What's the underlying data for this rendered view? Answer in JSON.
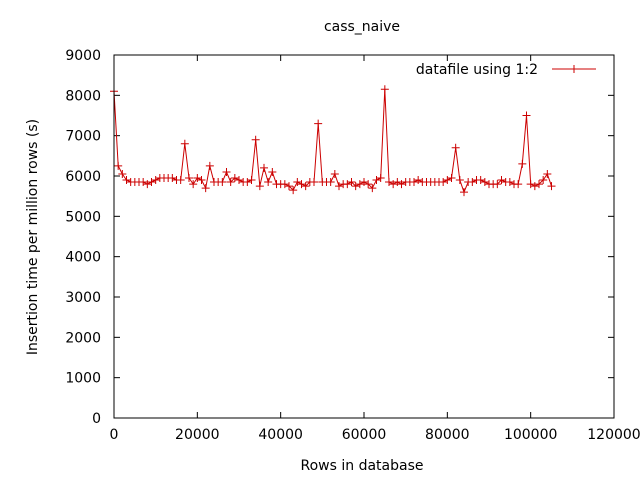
{
  "chart_data": {
    "type": "line",
    "title": "cass_naive",
    "xlabel": "Rows in database",
    "ylabel": "Insertion time per million rows (s)",
    "xlim": [
      0,
      120000
    ],
    "ylim": [
      0,
      9000
    ],
    "x_ticks": [
      0,
      20000,
      40000,
      60000,
      80000,
      100000,
      120000
    ],
    "y_ticks": [
      0,
      1000,
      2000,
      3000,
      4000,
      5000,
      6000,
      7000,
      8000,
      9000
    ],
    "x_tick_labels": [
      "0",
      "20000",
      "40000",
      "60000",
      "80000",
      "100000",
      "120000"
    ],
    "y_tick_labels": [
      "0",
      "1000",
      "2000",
      "3000",
      "4000",
      "5000",
      "6000",
      "7000",
      "8000",
      "9000"
    ],
    "grid": false,
    "legend_position": "top-right",
    "series_color": "#cc0000",
    "series": [
      {
        "name": "datafile using 1:2",
        "x": [
          0,
          1000,
          2000,
          3000,
          4000,
          5000,
          6000,
          7000,
          8000,
          9000,
          10000,
          11000,
          12000,
          13000,
          14000,
          15000,
          16000,
          17000,
          18000,
          19000,
          20000,
          21000,
          22000,
          23000,
          24000,
          25000,
          26000,
          27000,
          28000,
          29000,
          30000,
          31000,
          32000,
          33000,
          34000,
          35000,
          36000,
          37000,
          38000,
          39000,
          40000,
          41000,
          42000,
          43000,
          44000,
          45000,
          46000,
          47000,
          48000,
          49000,
          50000,
          51000,
          52000,
          53000,
          54000,
          55000,
          56000,
          57000,
          58000,
          59000,
          60000,
          61000,
          62000,
          63000,
          64000,
          65000,
          66000,
          67000,
          68000,
          69000,
          70000,
          71000,
          72000,
          73000,
          74000,
          75000,
          76000,
          77000,
          78000,
          79000,
          80000,
          81000,
          82000,
          83000,
          84000,
          85000,
          86000,
          87000,
          88000,
          89000,
          90000,
          91000,
          92000,
          93000,
          94000,
          95000,
          96000,
          97000,
          98000,
          99000,
          100000,
          101000,
          102000,
          103000,
          104000,
          105000
        ],
        "y": [
          8100,
          6250,
          6050,
          5900,
          5850,
          5850,
          5850,
          5850,
          5800,
          5850,
          5900,
          5950,
          5950,
          5950,
          5950,
          5900,
          5900,
          6800,
          5950,
          5800,
          5950,
          5900,
          5700,
          6250,
          5850,
          5850,
          5850,
          6100,
          5850,
          5950,
          5900,
          5850,
          5850,
          5900,
          6900,
          5750,
          6200,
          5850,
          6100,
          5800,
          5800,
          5800,
          5750,
          5650,
          5850,
          5800,
          5750,
          5850,
          5850,
          7300,
          5850,
          5850,
          5850,
          6050,
          5750,
          5800,
          5800,
          5850,
          5750,
          5800,
          5850,
          5800,
          5700,
          5900,
          5950,
          8150,
          5850,
          5800,
          5850,
          5800,
          5850,
          5850,
          5850,
          5900,
          5850,
          5850,
          5850,
          5850,
          5850,
          5850,
          5900,
          5950,
          6700,
          5900,
          5600,
          5850,
          5850,
          5900,
          5900,
          5850,
          5800,
          5800,
          5800,
          5900,
          5850,
          5850,
          5800,
          5800,
          6300,
          7500,
          5800,
          5750,
          5800,
          5900,
          6050,
          5750
        ]
      }
    ]
  }
}
